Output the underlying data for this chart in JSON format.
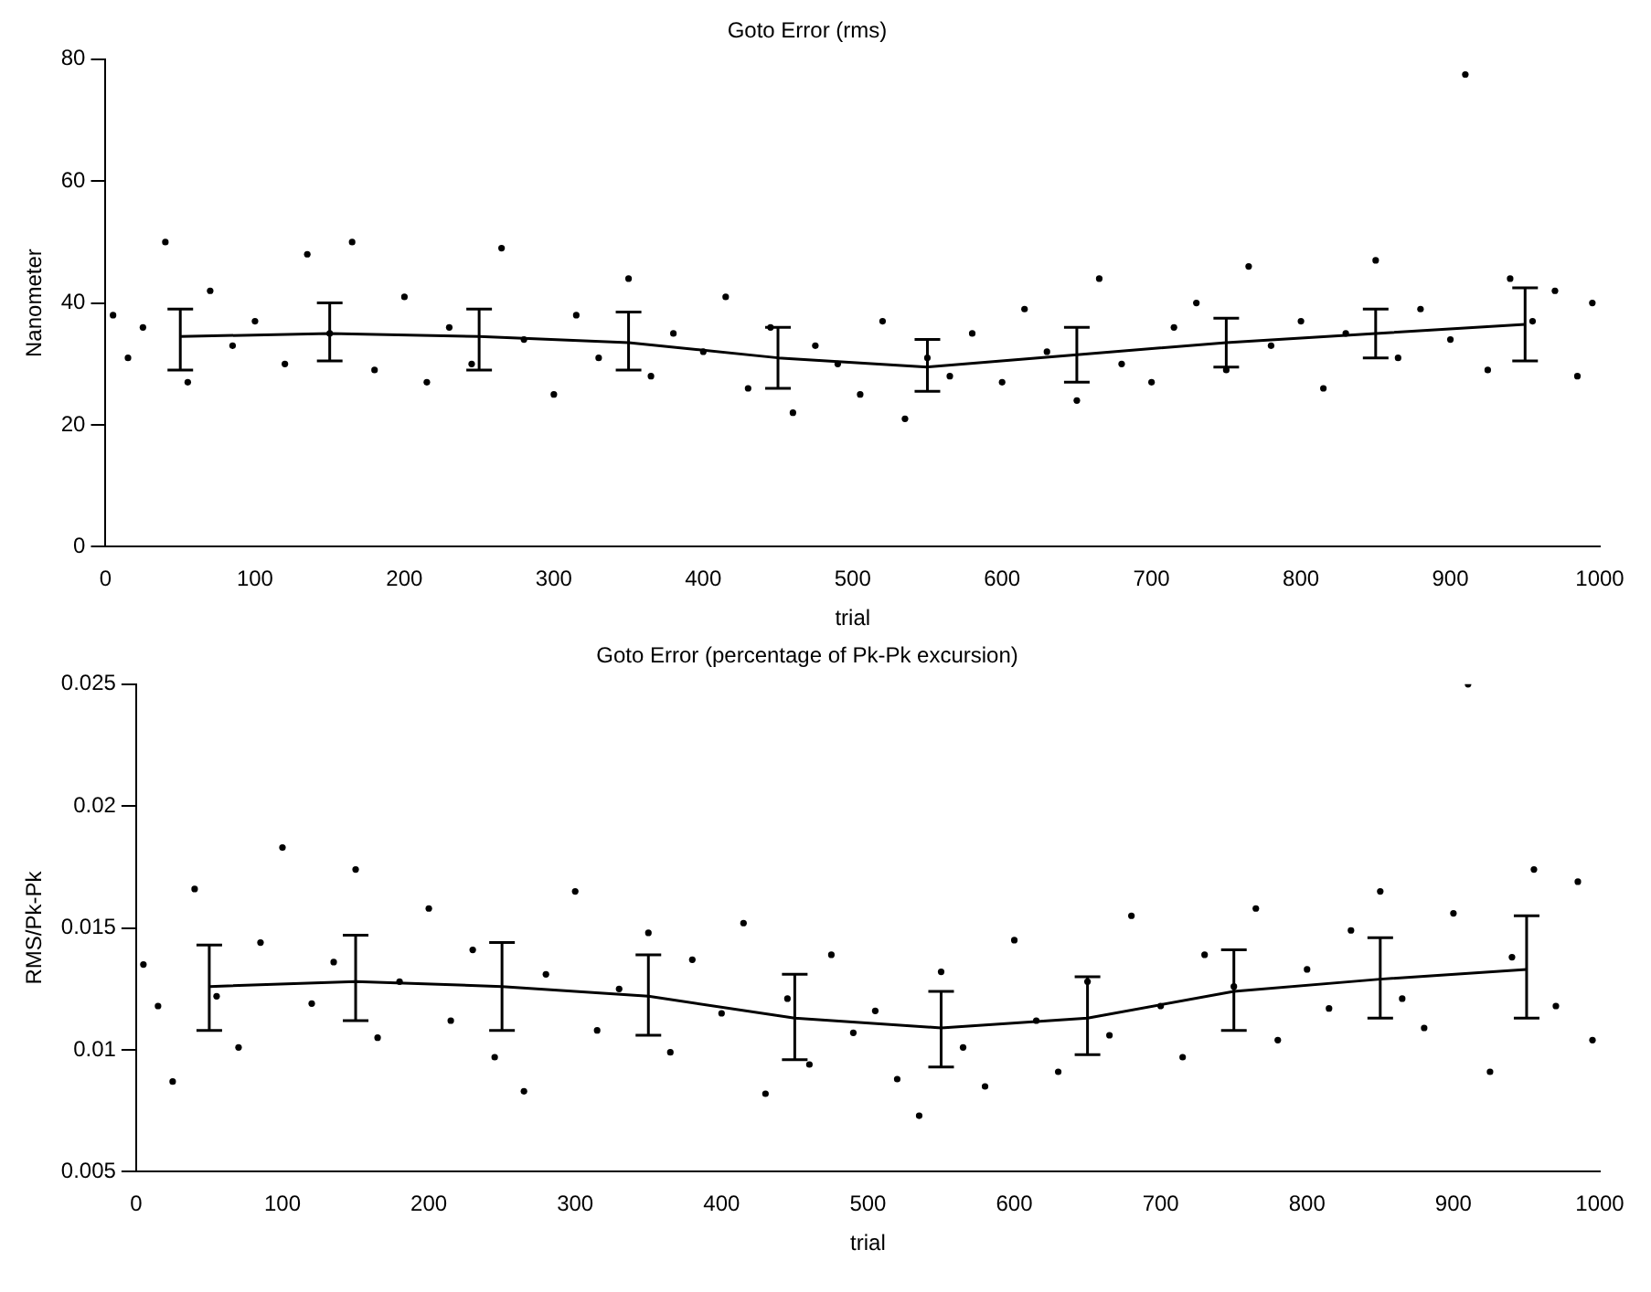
{
  "chart_data": [
    {
      "type": "scatter",
      "title": "Goto Error (rms)",
      "xlabel": "trial",
      "ylabel": "Nanometer",
      "xlim": [
        0,
        1000
      ],
      "xticks": [
        0,
        100,
        200,
        300,
        400,
        500,
        600,
        700,
        800,
        900,
        1000
      ],
      "ylim": [
        0,
        80
      ],
      "yticks": [
        0,
        20,
        40,
        60,
        80
      ],
      "grid": false,
      "legend": false,
      "series": [
        {
          "color": "#000000",
          "marker": "circle",
          "x": [
            5,
            15,
            25,
            40,
            55,
            70,
            85,
            100,
            120,
            135,
            150,
            165,
            180,
            200,
            215,
            230,
            245,
            265,
            280,
            300,
            315,
            330,
            350,
            365,
            380,
            400,
            415,
            430,
            445,
            460,
            475,
            490,
            505,
            520,
            535,
            550,
            565,
            580,
            600,
            615,
            630,
            650,
            665,
            680,
            700,
            715,
            730,
            750,
            765,
            780,
            800,
            815,
            830,
            850,
            865,
            880,
            900,
            910,
            925,
            940,
            955,
            970,
            985,
            995
          ],
          "values": [
            38,
            31,
            36,
            50,
            27,
            42,
            33,
            37,
            30,
            48,
            35,
            50,
            29,
            41,
            27,
            36,
            30,
            49,
            34,
            25,
            38,
            31,
            44,
            28,
            35,
            32,
            41,
            26,
            36,
            22,
            33,
            30,
            25,
            37,
            21,
            31,
            28,
            35,
            27,
            39,
            32,
            24,
            44,
            30,
            27,
            36,
            40,
            29,
            46,
            33,
            37,
            26,
            35,
            47,
            31,
            39,
            34,
            77.5,
            29,
            44,
            37,
            42,
            28,
            40
          ]
        },
        {
          "type": "line",
          "color": "#000000",
          "marker": "none",
          "line_style": "solid",
          "x": [
            50,
            150,
            250,
            350,
            450,
            550,
            650,
            750,
            850,
            950
          ],
          "values": [
            34.5,
            35,
            34.5,
            33.5,
            31,
            29.5,
            31.5,
            33.5,
            35,
            36.5
          ],
          "errors": [
            [
              29,
              39
            ],
            [
              30.5,
              40
            ],
            [
              29,
              39
            ],
            [
              29,
              38.5
            ],
            [
              26,
              36
            ],
            [
              25.5,
              34
            ],
            [
              27,
              36
            ],
            [
              29.5,
              37.5
            ],
            [
              31,
              39
            ],
            [
              30.5,
              42.5
            ]
          ]
        }
      ]
    },
    {
      "type": "scatter",
      "title": "Goto Error (percentage of Pk-Pk excursion)",
      "xlabel": "trial",
      "ylabel": "RMS/Pk-Pk",
      "xlim": [
        0,
        1000
      ],
      "xticks": [
        0,
        100,
        200,
        300,
        400,
        500,
        600,
        700,
        800,
        900,
        1000
      ],
      "ylim": [
        0.005,
        0.025
      ],
      "yticks": [
        0.005,
        0.01,
        0.015,
        0.02,
        0.025
      ],
      "grid": false,
      "legend": false,
      "series": [
        {
          "color": "#000000",
          "marker": "circle",
          "x": [
            5,
            15,
            25,
            40,
            55,
            70,
            85,
            100,
            120,
            135,
            150,
            165,
            180,
            200,
            215,
            230,
            245,
            265,
            280,
            300,
            315,
            330,
            350,
            365,
            380,
            400,
            415,
            430,
            445,
            460,
            475,
            490,
            505,
            520,
            535,
            550,
            565,
            580,
            600,
            615,
            630,
            650,
            665,
            680,
            700,
            715,
            730,
            750,
            765,
            780,
            800,
            815,
            830,
            850,
            865,
            880,
            900,
            910,
            925,
            940,
            955,
            970,
            985,
            995
          ],
          "values": [
            0.0135,
            0.0118,
            0.0087,
            0.0166,
            0.0122,
            0.0101,
            0.0144,
            0.0183,
            0.0119,
            0.0136,
            0.0174,
            0.0105,
            0.0128,
            0.0158,
            0.0112,
            0.0141,
            0.0097,
            0.0083,
            0.0131,
            0.0165,
            0.0108,
            0.0125,
            0.0148,
            0.0099,
            0.0137,
            0.0115,
            0.0152,
            0.0082,
            0.0121,
            0.0094,
            0.0139,
            0.0107,
            0.0116,
            0.0088,
            0.0073,
            0.0132,
            0.0101,
            0.0085,
            0.0145,
            0.0112,
            0.0091,
            0.0128,
            0.0106,
            0.0155,
            0.0118,
            0.0097,
            0.0139,
            0.0126,
            0.0158,
            0.0104,
            0.0133,
            0.0117,
            0.0149,
            0.0165,
            0.0121,
            0.0109,
            0.0156,
            0.025,
            0.0091,
            0.0138,
            0.0174,
            0.0118,
            0.0169,
            0.0104
          ]
        },
        {
          "type": "line",
          "color": "#000000",
          "marker": "none",
          "line_style": "solid",
          "x": [
            50,
            150,
            250,
            350,
            450,
            550,
            650,
            750,
            850,
            950
          ],
          "values": [
            0.0126,
            0.0128,
            0.0126,
            0.0122,
            0.0113,
            0.0109,
            0.0113,
            0.0124,
            0.0129,
            0.0133
          ],
          "errors": [
            [
              0.0108,
              0.0143
            ],
            [
              0.0112,
              0.0147
            ],
            [
              0.0108,
              0.0144
            ],
            [
              0.0106,
              0.0139
            ],
            [
              0.0096,
              0.0131
            ],
            [
              0.0093,
              0.0124
            ],
            [
              0.0098,
              0.013
            ],
            [
              0.0108,
              0.0141
            ],
            [
              0.0113,
              0.0146
            ],
            [
              0.0113,
              0.0155
            ]
          ]
        }
      ]
    }
  ]
}
